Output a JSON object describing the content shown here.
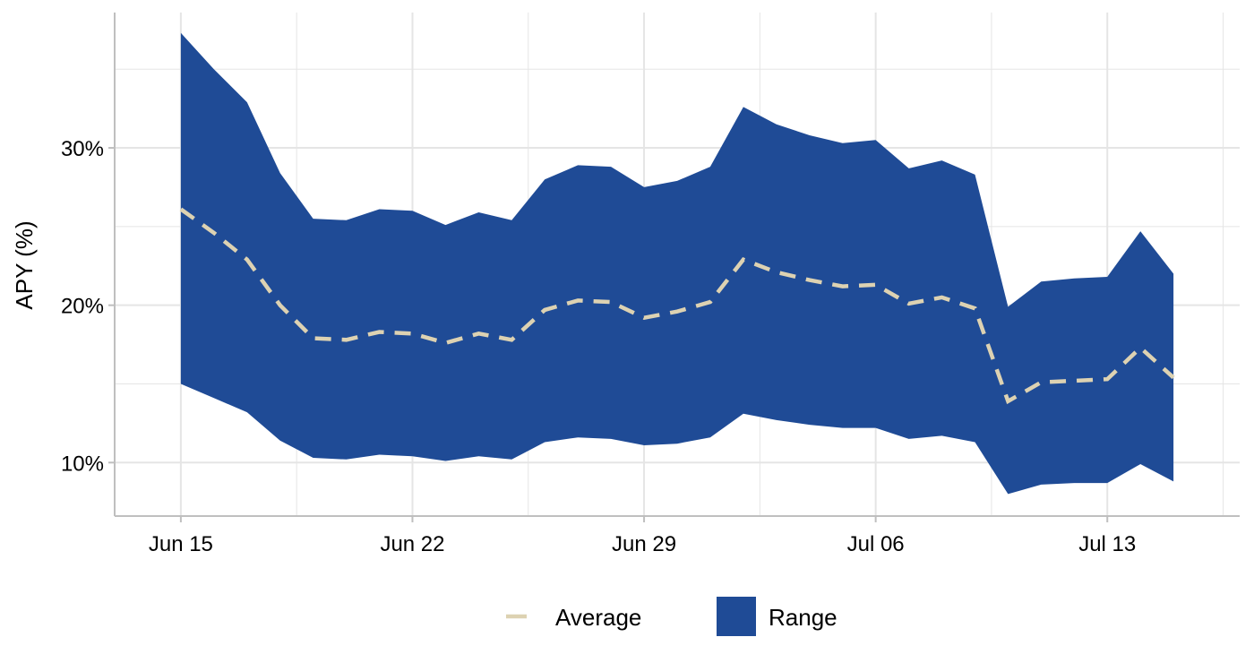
{
  "chart_data": {
    "type": "area",
    "ylabel": "APY (%)",
    "xlabel": "",
    "title": "",
    "x_ticks": [
      "Jun 15",
      "Jun 22",
      "Jun 29",
      "Jul 06",
      "Jul 13"
    ],
    "y_ticks": [
      "10%",
      "20%",
      "30%"
    ],
    "ylim": [
      6.6,
      38.6
    ],
    "xlim": [
      "2024-06-13",
      "2024-07-17"
    ],
    "grid": true,
    "legend_position": "bottom",
    "legend": [
      "Average",
      "Range"
    ],
    "colors": {
      "range": "#1f4b96",
      "average": "#ddd2b2",
      "grid": "#e5e5e5",
      "axis": "#bfbfbf"
    },
    "x": [
      "Jun 15",
      "Jun 16",
      "Jun 17",
      "Jun 18",
      "Jun 19",
      "Jun 20",
      "Jun 21",
      "Jun 22",
      "Jun 23",
      "Jun 24",
      "Jun 25",
      "Jun 26",
      "Jun 27",
      "Jun 28",
      "Jun 29",
      "Jun 30",
      "Jul 01",
      "Jul 02",
      "Jul 03",
      "Jul 04",
      "Jul 05",
      "Jul 06",
      "Jul 07",
      "Jul 08",
      "Jul 09",
      "Jul 10",
      "Jul 11",
      "Jul 12",
      "Jul 13",
      "Jul 14",
      "Jul 15"
    ],
    "series": [
      {
        "name": "Range",
        "kind": "ribbon",
        "upper": [
          37.3,
          35.0,
          32.9,
          28.4,
          25.5,
          25.4,
          26.1,
          26.0,
          25.1,
          25.9,
          25.4,
          28.0,
          28.9,
          28.8,
          27.5,
          27.9,
          28.8,
          32.6,
          31.5,
          30.8,
          30.3,
          30.5,
          28.7,
          29.2,
          28.3,
          19.9,
          21.5,
          21.7,
          21.8,
          24.7,
          22.0
        ],
        "lower": [
          15.0,
          14.1,
          13.2,
          11.4,
          10.3,
          10.2,
          10.5,
          10.4,
          10.1,
          10.4,
          10.2,
          11.3,
          11.6,
          11.5,
          11.1,
          11.2,
          11.6,
          13.1,
          12.7,
          12.4,
          12.2,
          12.2,
          11.5,
          11.7,
          11.3,
          8.0,
          8.6,
          8.7,
          8.7,
          9.9,
          8.8
        ]
      },
      {
        "name": "Average",
        "kind": "line",
        "values": [
          26.1,
          24.6,
          22.9,
          20.0,
          17.9,
          17.8,
          18.3,
          18.2,
          17.6,
          18.2,
          17.8,
          19.7,
          20.3,
          20.2,
          19.2,
          19.6,
          20.2,
          22.9,
          22.1,
          21.6,
          21.2,
          21.3,
          20.1,
          20.5,
          19.8,
          13.9,
          15.1,
          15.2,
          15.3,
          17.3,
          15.4
        ]
      }
    ]
  }
}
